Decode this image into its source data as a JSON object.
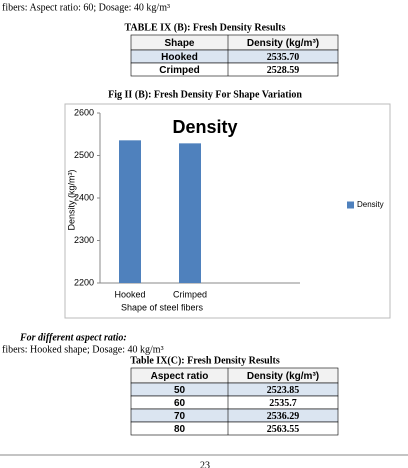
{
  "intro": "fibers: Aspect ratio: 60; Dosage: 40 kg/m³",
  "table_b": {
    "title": "TABLE IX (B): Fresh Density Results",
    "header": [
      "Shape",
      "Density (kg/m³)"
    ],
    "rows": [
      [
        "Hooked",
        "2535.70"
      ],
      [
        "Crimped",
        "2528.59"
      ]
    ]
  },
  "figure_caption": "Fig II (B): Fresh Density For Shape Variation",
  "chart_data": {
    "type": "bar",
    "title": "Density",
    "y_label": "Density (kg/m³)",
    "x_label": "Shape of steel fibers",
    "categories": [
      "Hooked",
      "Crimped"
    ],
    "series": [
      {
        "name": "Density",
        "color": "#4f81bd",
        "values": [
          2535.7,
          2528.59
        ]
      }
    ],
    "ylim": [
      2200,
      2600
    ],
    "yticks": [
      2200,
      2300,
      2400,
      2500,
      2600
    ],
    "grid": false,
    "legend": "right"
  },
  "section_heading": "For different aspect ratio:",
  "intro_c": "fibers: Hooked shape; Dosage: 40 kg/m³",
  "table_c": {
    "title": "Table IX(C): Fresh Density Results",
    "header": [
      "Aspect ratio",
      "Density (kg/m³)"
    ],
    "rows": [
      [
        "50",
        "2523.85"
      ],
      [
        "60",
        "2535.7"
      ],
      [
        "70",
        "2536.29"
      ],
      [
        "80",
        "2563.55"
      ]
    ]
  },
  "page_number": "23"
}
